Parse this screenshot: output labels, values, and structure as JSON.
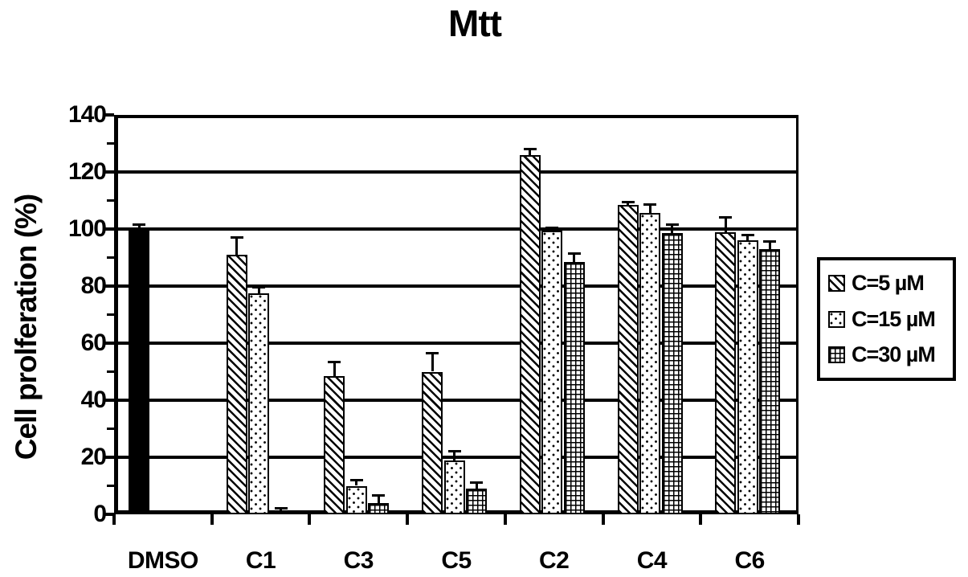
{
  "chart_data": {
    "type": "bar",
    "title": "Mtt",
    "xlabel": "",
    "ylabel": "Cell prolferation (%)",
    "ylim": [
      0,
      140
    ],
    "y_ticks": [
      140,
      120,
      100,
      80,
      60,
      40,
      20,
      0
    ],
    "y_minor_tick_step": 10,
    "grid": true,
    "legend_position": "right-outside",
    "categories": [
      "DMSO",
      "C1",
      "C3",
      "C5",
      "C2",
      "C4",
      "C6"
    ],
    "control": {
      "category": "DMSO",
      "label": "DMSO",
      "pattern": "solid",
      "value": 100,
      "error": 1.5
    },
    "series": [
      {
        "name": "C=5 µM",
        "pattern": "hatch",
        "values": [
          null,
          91,
          48.5,
          50,
          126,
          108.5,
          99
        ],
        "errors": [
          null,
          6,
          5,
          6.5,
          2,
          1,
          5
        ]
      },
      {
        "name": "C=15 µM",
        "pattern": "dots",
        "values": [
          null,
          77.5,
          10,
          19,
          99.5,
          105.5,
          96
        ],
        "errors": [
          null,
          2,
          2,
          3,
          1,
          3,
          2
        ]
      },
      {
        "name": "C=30 µM",
        "pattern": "grid",
        "values": [
          null,
          1,
          4,
          9,
          88.5,
          98.5,
          93
        ],
        "errors": [
          null,
          1,
          2.5,
          2,
          3,
          3,
          2.5
        ]
      }
    ]
  }
}
